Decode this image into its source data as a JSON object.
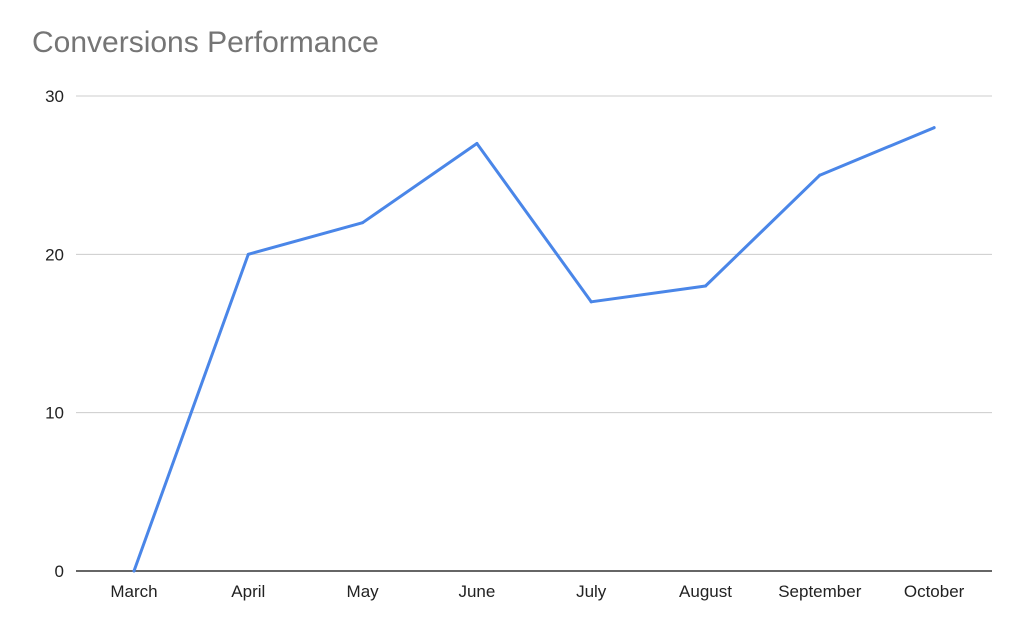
{
  "chart_data": {
    "type": "line",
    "title": "Conversions Performance",
    "xlabel": "",
    "ylabel": "",
    "categories": [
      "March",
      "April",
      "May",
      "June",
      "July",
      "August",
      "September",
      "October"
    ],
    "series": [
      {
        "values": [
          0,
          20,
          22,
          27,
          17,
          18,
          25,
          28
        ],
        "color": "#4a86e8"
      }
    ],
    "ylim": [
      0,
      30
    ],
    "yticks": [
      0,
      10,
      20,
      30
    ],
    "grid": true,
    "legend": "none"
  }
}
